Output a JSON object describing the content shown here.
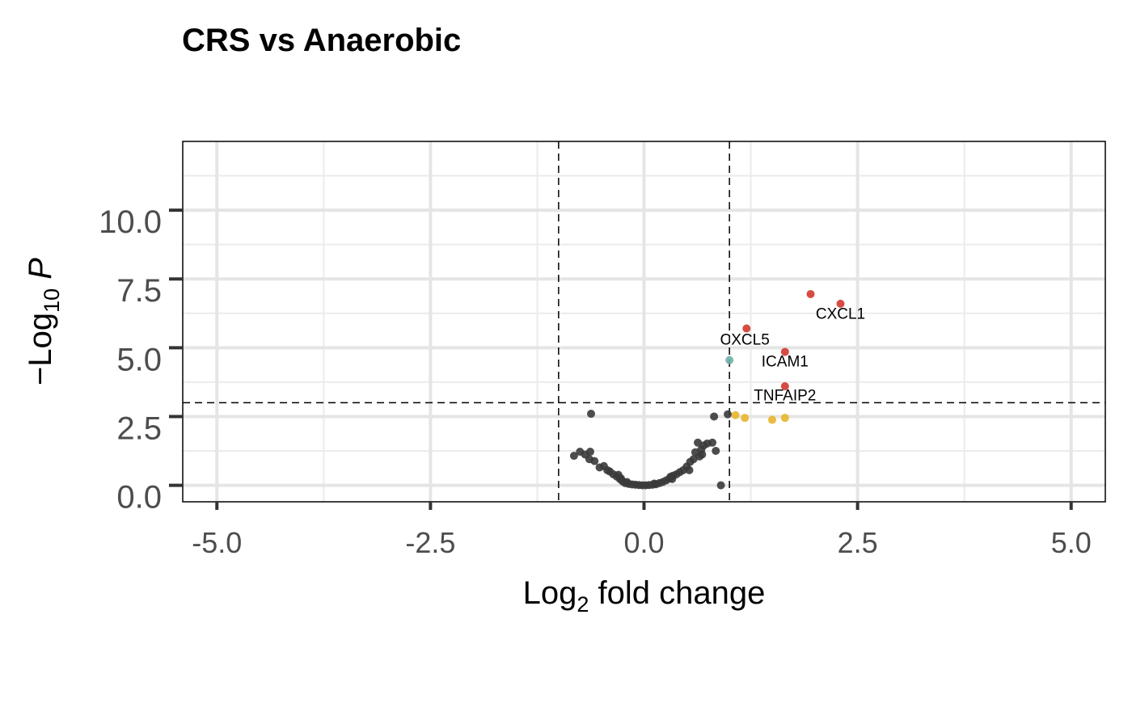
{
  "chart_data": {
    "type": "scatter",
    "title": "CRS vs Anaerobic",
    "xlabel": {
      "prefix": "Log",
      "sub": "2",
      "suffix": " fold change"
    },
    "ylabel": {
      "prefix": "−Log",
      "sub": "10",
      "suffix": " P"
    },
    "xlim": [
      -5.4,
      5.4
    ],
    "ylim": [
      -0.6,
      12.5
    ],
    "xticks": [
      -5.0,
      -2.5,
      0.0,
      2.5,
      5.0
    ],
    "xtick_labels": [
      "-5.0",
      "-2.5",
      "0.0",
      "2.5",
      "5.0"
    ],
    "yticks": [
      0.0,
      2.5,
      5.0,
      7.5,
      10.0
    ],
    "ytick_labels": [
      "0.0",
      "2.5",
      "5.0",
      "7.5",
      "10.0"
    ],
    "grid": true,
    "cutoffs": {
      "fc": [
        -1.0,
        1.0
      ],
      "p": 3.0
    },
    "colors": {
      "ns": "#3a3a3a",
      "log2fc": "#e8b52a",
      "p": "#6fb0a8",
      "p_and_log2fc": "#d2382f"
    },
    "series": [
      {
        "key": "ns",
        "points": [
          [
            -0.82,
            1.07
          ],
          [
            -0.75,
            1.22
          ],
          [
            -0.69,
            1.12
          ],
          [
            -0.63,
            1.22
          ],
          [
            -0.64,
            0.95
          ],
          [
            -0.58,
            0.88
          ],
          [
            -0.52,
            0.65
          ],
          [
            -0.47,
            0.7
          ],
          [
            -0.43,
            0.55
          ],
          [
            -0.36,
            0.4
          ],
          [
            -0.32,
            0.32
          ],
          [
            -0.28,
            0.22
          ],
          [
            -0.25,
            0.14
          ],
          [
            -0.22,
            0.08
          ],
          [
            -0.18,
            0.05
          ],
          [
            -0.14,
            0.03
          ],
          [
            -0.1,
            0.02
          ],
          [
            -0.06,
            0.01
          ],
          [
            -0.02,
            0.0
          ],
          [
            0.02,
            0.0
          ],
          [
            0.06,
            0.01
          ],
          [
            0.1,
            0.02
          ],
          [
            0.14,
            0.04
          ],
          [
            0.18,
            0.08
          ],
          [
            0.22,
            0.12
          ],
          [
            0.26,
            0.18
          ],
          [
            0.3,
            0.25
          ],
          [
            0.34,
            0.35
          ],
          [
            0.38,
            0.4
          ],
          [
            0.42,
            0.48
          ],
          [
            0.46,
            0.55
          ],
          [
            0.5,
            0.68
          ],
          [
            0.54,
            0.85
          ],
          [
            0.58,
            0.95
          ],
          [
            0.6,
            1.2
          ],
          [
            0.65,
            1.05
          ],
          [
            0.67,
            1.3
          ],
          [
            0.7,
            1.45
          ],
          [
            0.74,
            1.52
          ],
          [
            0.8,
            1.55
          ],
          [
            0.84,
            1.25
          ],
          [
            0.82,
            2.5
          ],
          [
            0.98,
            2.58
          ],
          [
            -0.62,
            2.6
          ],
          [
            -0.3,
            0.38
          ],
          [
            -0.2,
            0.12
          ],
          [
            0.12,
            0.06
          ],
          [
            0.31,
            0.31
          ],
          [
            0.68,
            1.12
          ],
          [
            0.63,
            1.55
          ],
          [
            0.9,
            0.0
          ],
          [
            -0.4,
            0.5
          ],
          [
            -0.27,
            0.25
          ],
          [
            0.33,
            0.23
          ],
          [
            0.53,
            0.55
          ]
        ]
      },
      {
        "key": "log2fc",
        "points": [
          [
            1.07,
            2.55
          ],
          [
            1.18,
            2.45
          ],
          [
            1.5,
            2.38
          ],
          [
            1.65,
            2.45
          ]
        ]
      },
      {
        "key": "p",
        "points": [
          [
            1.0,
            4.55
          ]
        ]
      },
      {
        "key": "p_and_log2fc",
        "points": [
          [
            1.95,
            6.95
          ],
          [
            2.3,
            6.6
          ],
          [
            1.2,
            5.7
          ],
          [
            1.65,
            4.85
          ],
          [
            1.65,
            3.6
          ]
        ]
      }
    ],
    "annotations": [
      {
        "label": "CXCL1",
        "x": 2.3,
        "y": 6.6,
        "tx": 2.3,
        "ty": 6.05
      },
      {
        "label": "CXCL5",
        "x": 1.2,
        "y": 5.7,
        "tx": 1.18,
        "ty": 5.12
      },
      {
        "label": "ICAM1",
        "x": 1.65,
        "y": 4.85,
        "tx": 1.65,
        "ty": 4.32
      },
      {
        "label": "TNFAIP2",
        "x": 1.65,
        "y": 3.6,
        "tx": 1.65,
        "ty": 3.08
      }
    ]
  }
}
